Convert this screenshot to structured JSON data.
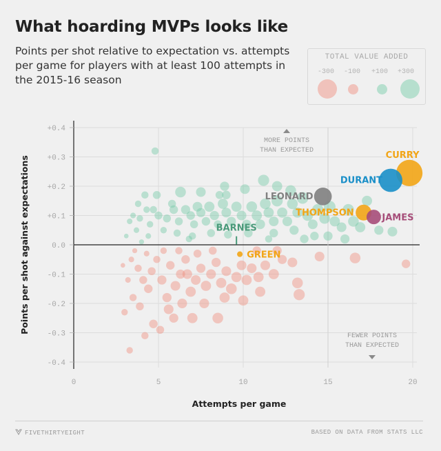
{
  "header": {
    "title": "What hoarding MVPs looks like",
    "subtitle": "Points per shot relative to expectation vs. attempts per game for players with at least 100 attempts in the 2015-16 season"
  },
  "legend": {
    "title": "TOTAL VALUE ADDED",
    "items": [
      {
        "label": "-300",
        "value": -300,
        "color": "#f08a7a"
      },
      {
        "label": "-100",
        "value": -100,
        "color": "#f08a7a"
      },
      {
        "label": "+100",
        "value": 100,
        "color": "#6fc9a4"
      },
      {
        "label": "+300",
        "value": 300,
        "color": "#6fc9a4"
      }
    ]
  },
  "colors": {
    "positive": "#6fc9a4",
    "negative": "#f08a7a",
    "highlight_yellow": "#f2a516",
    "durant": "#1a8fc8",
    "leonard": "#808080",
    "james": "#a64d79"
  },
  "footer": {
    "left": "FIVETHIRTYEIGHT",
    "right": "BASED ON DATA FROM STATS LLC"
  },
  "chart_data": {
    "type": "scatter",
    "title": "What hoarding MVPs looks like",
    "subtitle": "Points per shot relative to expectation vs. attempts per game for players with at least 100 attempts in the 2015-16 season",
    "xlabel": "Attempts per game",
    "ylabel": "Points per shot against expectations",
    "xlim": [
      0,
      20
    ],
    "ylim": [
      -0.4,
      0.4
    ],
    "x_ticks": [
      0,
      5,
      10,
      15,
      20
    ],
    "x_tick_labels": [
      "0",
      "5",
      "10",
      "15",
      "20"
    ],
    "y_ticks": [
      0.4,
      0.3,
      0.2,
      0.1,
      0.0,
      -0.1,
      -0.2,
      -0.3,
      -0.4
    ],
    "y_tick_labels": [
      "+0.4",
      "+0.3",
      "+0.2",
      "+0.1",
      "0.0",
      "-0.1",
      "-0.2",
      "-0.3",
      "-0.4"
    ],
    "annotations": {
      "top": [
        "MORE POINTS",
        "THAN EXPECTED"
      ],
      "bottom": [
        "FEWER POINTS",
        "THAN EXPECTED"
      ]
    },
    "highlighted": [
      {
        "name": "CURRY",
        "x": 19.8,
        "y": 0.245,
        "value_added": 330,
        "color": "#f2a516"
      },
      {
        "name": "DURANT",
        "x": 18.7,
        "y": 0.22,
        "value_added": 260,
        "color": "#1a8fc8"
      },
      {
        "name": "LEONARD",
        "x": 14.7,
        "y": 0.165,
        "value_added": 150,
        "color": "#808080"
      },
      {
        "name": "THOMPSON",
        "x": 17.1,
        "y": 0.11,
        "value_added": 120,
        "color": "#f2a516"
      },
      {
        "name": "JAMES",
        "x": 17.7,
        "y": 0.095,
        "value_added": 100,
        "color": "#a64d79"
      },
      {
        "name": "BARNES",
        "x": 9.6,
        "y": 0.015,
        "value_added": 6,
        "color": "#4a9a7a"
      },
      {
        "name": "GREEN",
        "x": 9.8,
        "y": -0.032,
        "value_added": -15,
        "color": "#f2a516"
      }
    ],
    "series": [
      {
        "name": "positive",
        "points": [
          [
            4.8,
            0.32,
            25
          ],
          [
            12,
            0.2,
            50
          ],
          [
            11.2,
            0.22,
            60
          ],
          [
            8.9,
            0.2,
            40
          ],
          [
            9,
            0.17,
            35
          ],
          [
            8.6,
            0.17,
            30
          ],
          [
            7.5,
            0.18,
            45
          ],
          [
            6.3,
            0.18,
            55
          ],
          [
            4.9,
            0.17,
            30
          ],
          [
            4.2,
            0.17,
            25
          ],
          [
            3.8,
            0.14,
            20
          ],
          [
            3.5,
            0.1,
            15
          ],
          [
            3.9,
            0.09,
            20
          ],
          [
            4.5,
            0.07,
            20
          ],
          [
            4.7,
            0.12,
            25
          ],
          [
            5.0,
            0.1,
            30
          ],
          [
            5.5,
            0.09,
            30
          ],
          [
            5.9,
            0.12,
            35
          ],
          [
            6.2,
            0.08,
            30
          ],
          [
            6.6,
            0.12,
            40
          ],
          [
            6.9,
            0.1,
            35
          ],
          [
            7.1,
            0.07,
            30
          ],
          [
            7.3,
            0.13,
            45
          ],
          [
            7.5,
            0.11,
            40
          ],
          [
            7.8,
            0.08,
            35
          ],
          [
            8.0,
            0.13,
            50
          ],
          [
            8.3,
            0.1,
            40
          ],
          [
            8.5,
            0.07,
            30
          ],
          [
            8.8,
            0.14,
            50
          ],
          [
            9.0,
            0.11,
            45
          ],
          [
            9.3,
            0.08,
            40
          ],
          [
            9.6,
            0.13,
            50
          ],
          [
            9.9,
            0.1,
            45
          ],
          [
            10.2,
            0.07,
            40
          ],
          [
            10.5,
            0.13,
            55
          ],
          [
            10.8,
            0.1,
            50
          ],
          [
            11.0,
            0.07,
            45
          ],
          [
            11.3,
            0.14,
            55
          ],
          [
            11.5,
            0.11,
            50
          ],
          [
            11.8,
            0.08,
            45
          ],
          [
            12.0,
            0.15,
            60
          ],
          [
            12.3,
            0.11,
            50
          ],
          [
            12.6,
            0.08,
            45
          ],
          [
            12.9,
            0.14,
            55
          ],
          [
            13.2,
            0.11,
            50
          ],
          [
            13.5,
            0.16,
            65
          ],
          [
            13.8,
            0.1,
            55
          ],
          [
            14.1,
            0.07,
            45
          ],
          [
            14.4,
            0.12,
            60
          ],
          [
            14.8,
            0.09,
            55
          ],
          [
            15.1,
            0.13,
            65
          ],
          [
            15.4,
            0.08,
            50
          ],
          [
            15.8,
            0.06,
            45
          ],
          [
            16.2,
            0.12,
            60
          ],
          [
            16.5,
            0.08,
            55
          ],
          [
            16.9,
            0.06,
            50
          ],
          [
            18.0,
            0.05,
            40
          ],
          [
            18.8,
            0.045,
            45
          ],
          [
            13.0,
            0.05,
            40
          ],
          [
            11.8,
            0.04,
            35
          ],
          [
            10.3,
            0.04,
            35
          ],
          [
            9.1,
            0.035,
            30
          ],
          [
            8.1,
            0.04,
            30
          ],
          [
            7.0,
            0.03,
            25
          ],
          [
            6.1,
            0.04,
            25
          ],
          [
            5.3,
            0.05,
            20
          ],
          [
            4.4,
            0.03,
            15
          ],
          [
            3.7,
            0.05,
            15
          ],
          [
            6.8,
            0.02,
            20
          ],
          [
            11.5,
            0.02,
            25
          ],
          [
            13.6,
            0.02,
            35
          ],
          [
            15.0,
            0.03,
            40
          ],
          [
            16.0,
            0.02,
            40
          ],
          [
            12.8,
            0.185,
            55
          ],
          [
            10.1,
            0.19,
            45
          ],
          [
            14.2,
            0.03,
            35
          ],
          [
            5.8,
            0.14,
            30
          ],
          [
            4.3,
            0.12,
            20
          ],
          [
            3.3,
            0.08,
            15
          ],
          [
            3.1,
            0.03,
            10
          ],
          [
            4.0,
            0.01,
            12
          ],
          [
            17.3,
            0.15,
            50
          ]
        ]
      },
      {
        "name": "negative",
        "points": [
          [
            3.4,
            -0.05,
            15
          ],
          [
            3.8,
            -0.08,
            25
          ],
          [
            4.1,
            -0.12,
            30
          ],
          [
            3.5,
            -0.18,
            25
          ],
          [
            3.9,
            -0.21,
            30
          ],
          [
            4.4,
            -0.15,
            35
          ],
          [
            4.6,
            -0.09,
            30
          ],
          [
            4.9,
            -0.05,
            25
          ],
          [
            5.2,
            -0.12,
            40
          ],
          [
            5.5,
            -0.18,
            40
          ],
          [
            5.7,
            -0.07,
            35
          ],
          [
            6.0,
            -0.14,
            45
          ],
          [
            6.3,
            -0.1,
            40
          ],
          [
            6.6,
            -0.05,
            35
          ],
          [
            6.9,
            -0.16,
            50
          ],
          [
            7.2,
            -0.12,
            45
          ],
          [
            7.5,
            -0.08,
            40
          ],
          [
            7.8,
            -0.14,
            50
          ],
          [
            8.1,
            -0.1,
            45
          ],
          [
            8.4,
            -0.06,
            40
          ],
          [
            8.7,
            -0.13,
            50
          ],
          [
            9.0,
            -0.09,
            45
          ],
          [
            9.3,
            -0.15,
            55
          ],
          [
            9.6,
            -0.11,
            50
          ],
          [
            9.9,
            -0.07,
            45
          ],
          [
            10.2,
            -0.12,
            50
          ],
          [
            10.5,
            -0.08,
            45
          ],
          [
            10.9,
            -0.11,
            50
          ],
          [
            11.3,
            -0.07,
            45
          ],
          [
            11.8,
            -0.1,
            50
          ],
          [
            12.3,
            -0.05,
            40
          ],
          [
            13.2,
            -0.13,
            55
          ],
          [
            13.3,
            -0.17,
            60
          ],
          [
            16.6,
            -0.045,
            55
          ],
          [
            19.6,
            -0.065,
            35
          ],
          [
            7.0,
            -0.25,
            50
          ],
          [
            8.5,
            -0.25,
            55
          ],
          [
            5.6,
            -0.22,
            45
          ],
          [
            4.7,
            -0.27,
            35
          ],
          [
            4.2,
            -0.31,
            25
          ],
          [
            3.3,
            -0.36,
            20
          ],
          [
            3.0,
            -0.23,
            20
          ],
          [
            5.1,
            -0.29,
            30
          ],
          [
            6.4,
            -0.2,
            45
          ],
          [
            7.7,
            -0.2,
            45
          ],
          [
            10.0,
            -0.19,
            50
          ],
          [
            11.0,
            -0.16,
            50
          ],
          [
            3.2,
            -0.12,
            15
          ],
          [
            2.9,
            -0.07,
            10
          ],
          [
            3.6,
            -0.02,
            12
          ],
          [
            4.3,
            -0.03,
            15
          ],
          [
            5.3,
            -0.02,
            20
          ],
          [
            6.2,
            -0.02,
            25
          ],
          [
            7.3,
            -0.03,
            30
          ],
          [
            8.2,
            -0.02,
            30
          ],
          [
            10.8,
            -0.02,
            35
          ],
          [
            12.0,
            -0.02,
            40
          ],
          [
            12.9,
            -0.06,
            45
          ],
          [
            14.5,
            -0.04,
            45
          ],
          [
            8.9,
            -0.18,
            50
          ],
          [
            6.7,
            -0.1,
            45
          ],
          [
            5.9,
            -0.25,
            40
          ]
        ]
      }
    ]
  }
}
